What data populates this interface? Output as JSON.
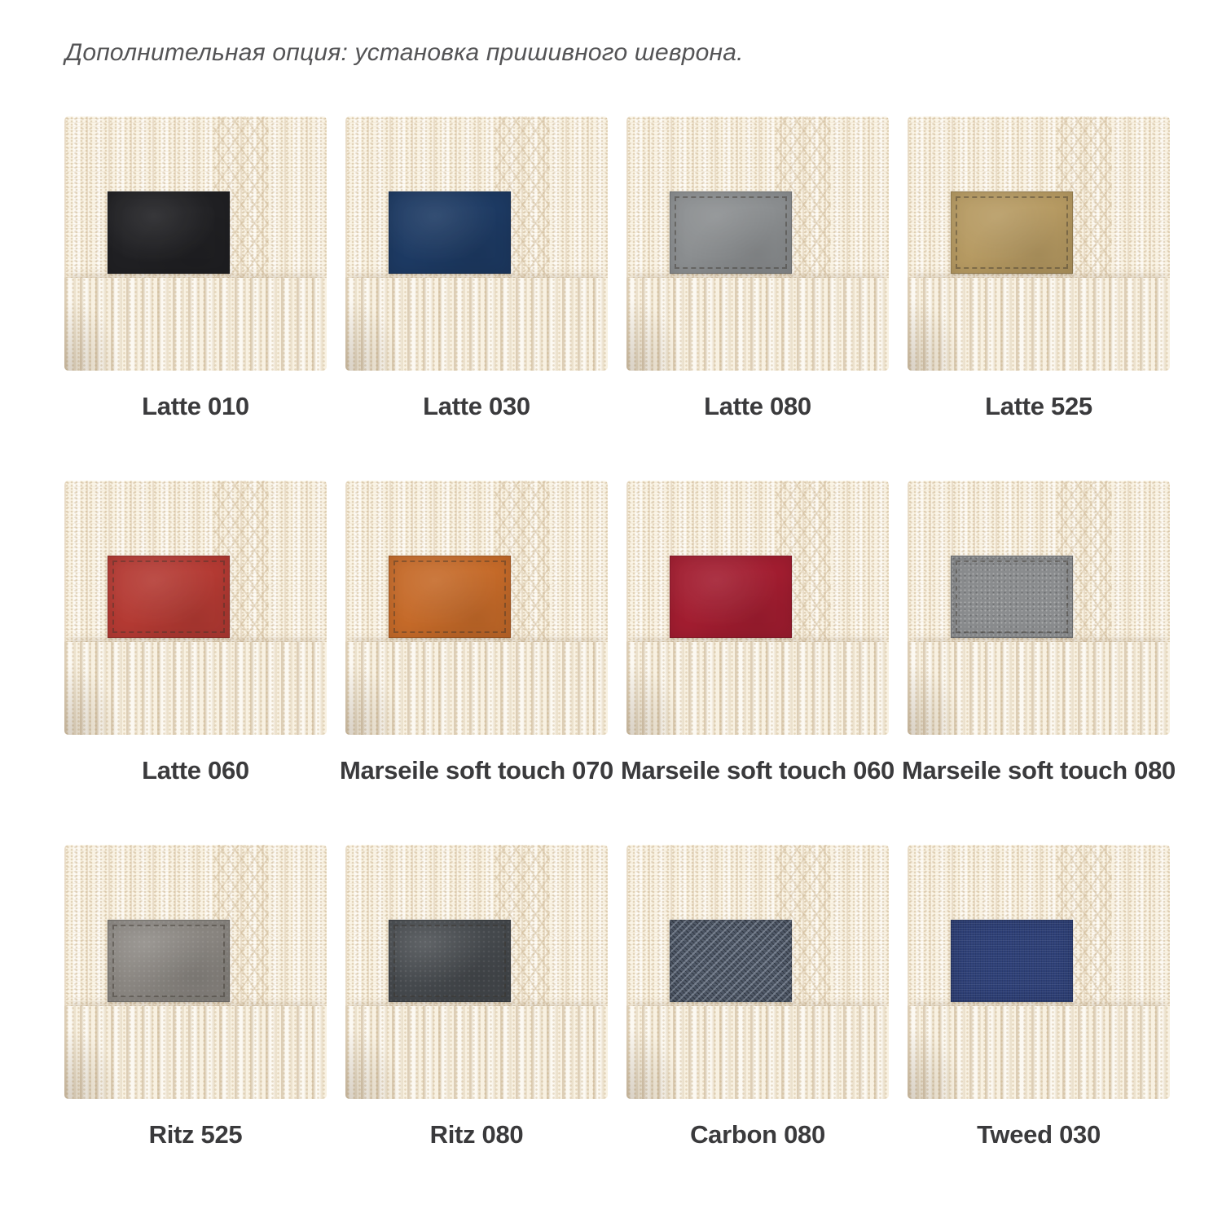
{
  "header": {
    "title": "Дополнительная опция: установка пришивного шеврона."
  },
  "blanket": {
    "base_color": "#faf4e6",
    "rib_band_color": "#f8f1e2"
  },
  "swatches": [
    {
      "label": "Latte 010",
      "patch_color": "#202023",
      "texture": "leather",
      "stitched": "false"
    },
    {
      "label": "Latte 030",
      "patch_color": "#1d3a63",
      "texture": "leather",
      "stitched": "false"
    },
    {
      "label": "Latte 080",
      "patch_color": "#8b8e90",
      "texture": "leather",
      "stitched": "true"
    },
    {
      "label": "Latte 525",
      "patch_color": "#b69a62",
      "texture": "leather",
      "stitched": "true"
    },
    {
      "label": "Latte 060",
      "patch_color": "#b43a33",
      "texture": "leather",
      "stitched": "true"
    },
    {
      "label": "Marseile soft touch 070",
      "patch_color": "#c56a29",
      "texture": "leather",
      "stitched": "true"
    },
    {
      "label": "Marseile soft touch 060",
      "patch_color": "#a21d30",
      "texture": "leather",
      "stitched": "false"
    },
    {
      "label": "Marseile soft touch 080",
      "patch_color": "#8a8c8e",
      "texture": "pebbled",
      "stitched": "true"
    },
    {
      "label": "Ritz 525",
      "patch_color": "#8a8681",
      "texture": "suede",
      "stitched": "true"
    },
    {
      "label": "Ritz 080",
      "patch_color": "#45494d",
      "texture": "suede",
      "stitched": "true"
    },
    {
      "label": "Carbon 080",
      "patch_color": "#4d5665",
      "texture": "carbon",
      "stitched": "false"
    },
    {
      "label": "Tweed 030",
      "patch_color": "#2e4077",
      "texture": "tweed",
      "stitched": "false"
    }
  ]
}
